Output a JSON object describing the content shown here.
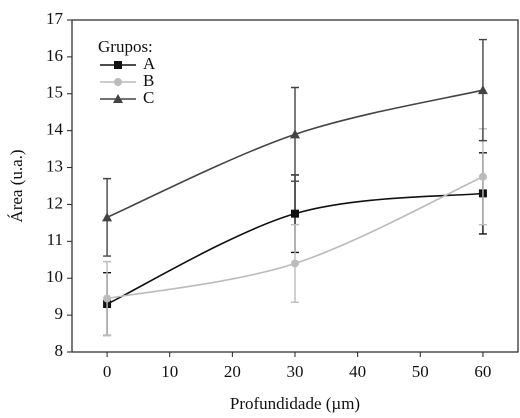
{
  "chart_data": {
    "type": "line",
    "x_label": "Profundidade (µm)",
    "y_label": "Área (u.a.)",
    "x": [
      0,
      30,
      60
    ],
    "series": [
      {
        "name": "A",
        "color": "#111111",
        "marker": "square",
        "values": [
          9.3,
          11.75,
          12.3
        ],
        "errors": [
          0.85,
          1.05,
          1.1
        ]
      },
      {
        "name": "B",
        "color": "#bbbbbb",
        "marker": "circle",
        "values": [
          9.45,
          10.4,
          12.75
        ],
        "errors": [
          1.0,
          1.05,
          1.3
        ]
      },
      {
        "name": "C",
        "color": "#444444",
        "marker": "triangle",
        "values": [
          11.65,
          13.9,
          15.1
        ],
        "errors": [
          1.05,
          1.27,
          1.37
        ]
      }
    ],
    "legend_title": "Grupos:",
    "legend": "upper left",
    "xlim": [
      -5.6,
      65.6
    ],
    "xticks": [
      0,
      10,
      20,
      30,
      40,
      50,
      60
    ],
    "ylim": [
      8,
      17
    ],
    "yticks": [
      8,
      9,
      10,
      11,
      12,
      13,
      14,
      15,
      16,
      17
    ]
  }
}
